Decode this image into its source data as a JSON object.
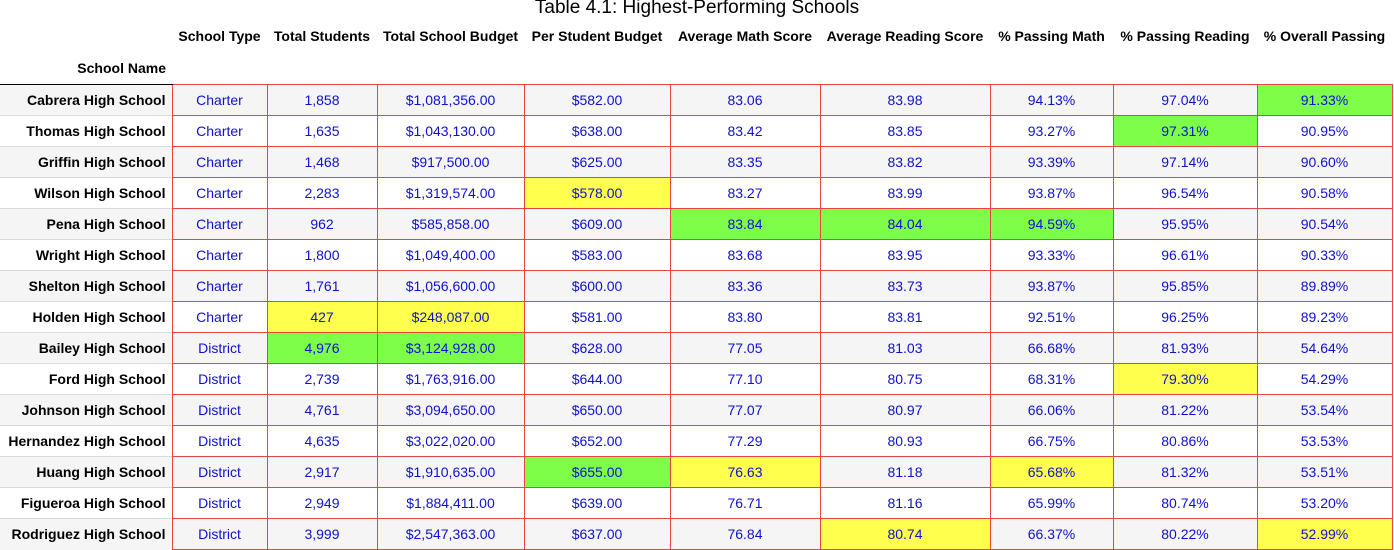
{
  "chart_data": {
    "type": "table",
    "title": "Table 4.1: Highest-Performing Schools",
    "index_label": "School Name",
    "columns": [
      "School Type",
      "Total Students",
      "Total School Budget",
      "Per Student Budget",
      "Average Math Score",
      "Average Reading Score",
      "% Passing Math",
      "% Passing Reading",
      "% Overall Passing"
    ],
    "highlight_colors": {
      "max": "#7dff4a",
      "min": "#ffff4d"
    },
    "rows": [
      {
        "name": "Cabrera High School",
        "type": "Charter",
        "students": "1,858",
        "budget": "$1,081,356.00",
        "per_student": "$582.00",
        "math": "83.06",
        "reading": "83.98",
        "pass_math": "94.13%",
        "pass_reading": "97.04%",
        "overall": "91.33%",
        "hl": {
          "overall": "max"
        }
      },
      {
        "name": "Thomas High School",
        "type": "Charter",
        "students": "1,635",
        "budget": "$1,043,130.00",
        "per_student": "$638.00",
        "math": "83.42",
        "reading": "83.85",
        "pass_math": "93.27%",
        "pass_reading": "97.31%",
        "overall": "90.95%",
        "hl": {
          "pass_reading": "max"
        }
      },
      {
        "name": "Griffin High School",
        "type": "Charter",
        "students": "1,468",
        "budget": "$917,500.00",
        "per_student": "$625.00",
        "math": "83.35",
        "reading": "83.82",
        "pass_math": "93.39%",
        "pass_reading": "97.14%",
        "overall": "90.60%",
        "hl": {}
      },
      {
        "name": "Wilson High School",
        "type": "Charter",
        "students": "2,283",
        "budget": "$1,319,574.00",
        "per_student": "$578.00",
        "math": "83.27",
        "reading": "83.99",
        "pass_math": "93.87%",
        "pass_reading": "96.54%",
        "overall": "90.58%",
        "hl": {
          "per_student": "min"
        }
      },
      {
        "name": "Pena High School",
        "type": "Charter",
        "students": "962",
        "budget": "$585,858.00",
        "per_student": "$609.00",
        "math": "83.84",
        "reading": "84.04",
        "pass_math": "94.59%",
        "pass_reading": "95.95%",
        "overall": "90.54%",
        "hl": {
          "math": "max",
          "reading": "max",
          "pass_math": "max"
        }
      },
      {
        "name": "Wright High School",
        "type": "Charter",
        "students": "1,800",
        "budget": "$1,049,400.00",
        "per_student": "$583.00",
        "math": "83.68",
        "reading": "83.95",
        "pass_math": "93.33%",
        "pass_reading": "96.61%",
        "overall": "90.33%",
        "hl": {}
      },
      {
        "name": "Shelton High School",
        "type": "Charter",
        "students": "1,761",
        "budget": "$1,056,600.00",
        "per_student": "$600.00",
        "math": "83.36",
        "reading": "83.73",
        "pass_math": "93.87%",
        "pass_reading": "95.85%",
        "overall": "89.89%",
        "hl": {}
      },
      {
        "name": "Holden High School",
        "type": "Charter",
        "students": "427",
        "budget": "$248,087.00",
        "per_student": "$581.00",
        "math": "83.80",
        "reading": "83.81",
        "pass_math": "92.51%",
        "pass_reading": "96.25%",
        "overall": "89.23%",
        "hl": {
          "students": "min",
          "budget": "min"
        }
      },
      {
        "name": "Bailey High School",
        "type": "District",
        "students": "4,976",
        "budget": "$3,124,928.00",
        "per_student": "$628.00",
        "math": "77.05",
        "reading": "81.03",
        "pass_math": "66.68%",
        "pass_reading": "81.93%",
        "overall": "54.64%",
        "hl": {
          "students": "max",
          "budget": "max"
        }
      },
      {
        "name": "Ford High School",
        "type": "District",
        "students": "2,739",
        "budget": "$1,763,916.00",
        "per_student": "$644.00",
        "math": "77.10",
        "reading": "80.75",
        "pass_math": "68.31%",
        "pass_reading": "79.30%",
        "overall": "54.29%",
        "hl": {
          "pass_reading": "min"
        }
      },
      {
        "name": "Johnson High School",
        "type": "District",
        "students": "4,761",
        "budget": "$3,094,650.00",
        "per_student": "$650.00",
        "math": "77.07",
        "reading": "80.97",
        "pass_math": "66.06%",
        "pass_reading": "81.22%",
        "overall": "53.54%",
        "hl": {}
      },
      {
        "name": "Hernandez High School",
        "type": "District",
        "students": "4,635",
        "budget": "$3,022,020.00",
        "per_student": "$652.00",
        "math": "77.29",
        "reading": "80.93",
        "pass_math": "66.75%",
        "pass_reading": "80.86%",
        "overall": "53.53%",
        "hl": {}
      },
      {
        "name": "Huang High School",
        "type": "District",
        "students": "2,917",
        "budget": "$1,910,635.00",
        "per_student": "$655.00",
        "math": "76.63",
        "reading": "81.18",
        "pass_math": "65.68%",
        "pass_reading": "81.32%",
        "overall": "53.51%",
        "hl": {
          "per_student": "max",
          "math": "min",
          "pass_math": "min"
        }
      },
      {
        "name": "Figueroa High School",
        "type": "District",
        "students": "2,949",
        "budget": "$1,884,411.00",
        "per_student": "$639.00",
        "math": "76.71",
        "reading": "81.16",
        "pass_math": "65.99%",
        "pass_reading": "80.74%",
        "overall": "53.20%",
        "hl": {}
      },
      {
        "name": "Rodriguez High School",
        "type": "District",
        "students": "3,999",
        "budget": "$2,547,363.00",
        "per_student": "$637.00",
        "math": "76.84",
        "reading": "80.74",
        "pass_math": "66.37%",
        "pass_reading": "80.22%",
        "overall": "52.99%",
        "hl": {
          "reading": "min",
          "overall": "min"
        }
      }
    ]
  }
}
